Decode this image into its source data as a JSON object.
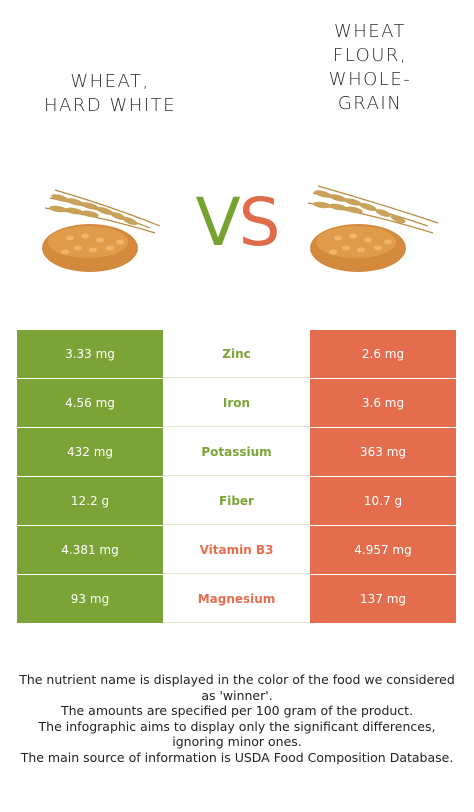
{
  "header": {
    "left_food": "Wheat,\nhard white",
    "right_food": "Wheat\nflour,\nwhole-\ngrain",
    "vs_v": "V",
    "vs_s": "S"
  },
  "colors": {
    "left_winner": "#7ba335",
    "right_winner": "#e46d4d"
  },
  "rows": [
    {
      "nutrient": "Zinc",
      "left": "3.33 mg",
      "right": "2.6 mg",
      "winner": "left"
    },
    {
      "nutrient": "Iron",
      "left": "4.56 mg",
      "right": "3.6 mg",
      "winner": "left"
    },
    {
      "nutrient": "Potassium",
      "left": "432 mg",
      "right": "363 mg",
      "winner": "left"
    },
    {
      "nutrient": "Fiber",
      "left": "12.2 g",
      "right": "10.7 g",
      "winner": "left"
    },
    {
      "nutrient": "Vitamin B3",
      "left": "4.381 mg",
      "right": "4.957 mg",
      "winner": "right"
    },
    {
      "nutrient": "Magnesium",
      "left": "93 mg",
      "right": "137 mg",
      "winner": "right"
    }
  ],
  "footer": {
    "line1": "The nutrient name is displayed in the color of the food we considered as 'winner'.",
    "line2": "The amounts are specified per 100 gram of the product.",
    "line3": "The infographic aims to display only the significant differences, ignoring minor ones.",
    "line4": "The main source of information is USDA Food Composition Database."
  }
}
